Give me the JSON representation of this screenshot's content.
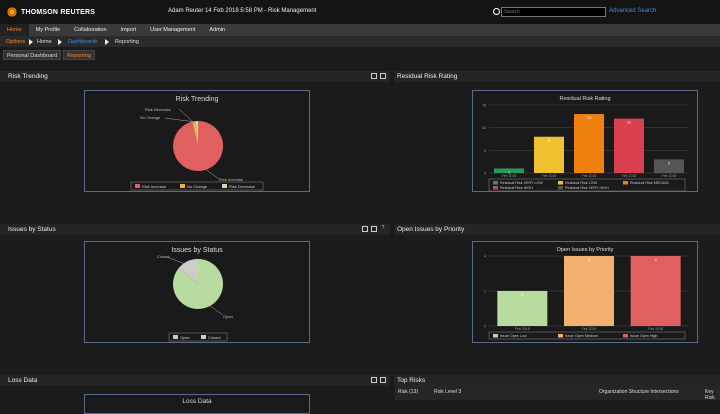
{
  "header": {
    "logo_text": "THOMSON REUTERS",
    "user_title": "Adam Reuter 14 Feb 2018 5:58 PM - Risk Management",
    "search_placeholder": "Search",
    "advanced_search": "Advanced Search"
  },
  "nav": [
    "Home",
    "My Profile",
    "Collaboration",
    "Import",
    "User Management",
    "Admin"
  ],
  "breadcrumb": [
    "Options",
    "Home",
    "Dashboards",
    "Reporting"
  ],
  "tabs": [
    "Personal Dashboard",
    "Reporting"
  ],
  "panels": {
    "risk_trending": "Risk Trending",
    "residual": "Residual Risk Rating",
    "issues_status": "Issues by Status",
    "open_issues": "Open Issues by Priority",
    "loss_data": "Loss Data",
    "top_risks": "Top Risks"
  },
  "colors": {
    "accent": "#f28c1e",
    "link": "#4a8ad4"
  },
  "charts": {
    "risk_trending": {
      "title": "Risk Trending",
      "labels": [
        "Risk Decrease",
        "No Change",
        "Risk Increase"
      ],
      "legend": [
        "Risk Increase",
        "No Change",
        "Risk Decrease"
      ]
    },
    "issues_status": {
      "title": "Issues by Status",
      "labels": [
        "Closed",
        "Open"
      ],
      "legend": [
        "Open",
        "Closed"
      ]
    },
    "loss_title": "Loss Data"
  },
  "chart_data": [
    {
      "type": "pie",
      "title": "Risk Trending",
      "slices": [
        {
          "label": "Risk Increase",
          "value": 96,
          "color": "#e06060"
        },
        {
          "label": "No Change",
          "value": 2,
          "color": "#f0b040"
        },
        {
          "label": "Risk Decrease",
          "value": 2,
          "color": "#c8e0a8"
        }
      ]
    },
    {
      "type": "bar",
      "title": "Residual Risk Rating",
      "categories": [
        "Feb 2018",
        "Feb 2018",
        "Feb 2018",
        "Feb 2018",
        "Feb 2018"
      ],
      "values": [
        1,
        8,
        13,
        12,
        3
      ],
      "ylim": [
        0,
        15
      ],
      "yticks": [
        "15",
        "10",
        "5",
        "0"
      ],
      "series_colors": [
        "#2a9a5a",
        "#f0c030",
        "#f08010",
        "#d84050",
        "#555555"
      ],
      "legend": [
        "Residual Risk VERY LOW",
        "Residual Risk LOW",
        "Residual Risk MEDIUM",
        "Residual Risk HIGH",
        "Residual Risk VERY HIGH"
      ]
    },
    {
      "type": "pie",
      "title": "Issues by Status",
      "slices": [
        {
          "label": "Open",
          "value": 90,
          "color": "#b8dca0"
        },
        {
          "label": "Closed",
          "value": 10,
          "color": "#cccccc"
        }
      ]
    },
    {
      "type": "bar",
      "title": "Open Issues by Priority",
      "categories": [
        "Feb 2018",
        "Feb 2018",
        "Feb 2018"
      ],
      "values": [
        2,
        4,
        4
      ],
      "ylim": [
        0,
        4
      ],
      "yticks": [
        "4",
        "2",
        "0"
      ],
      "series_colors": [
        "#b8dca0",
        "#f4b070",
        "#e06060"
      ],
      "legend": [
        "Issue Open Low",
        "Issue Open Medium",
        "Issue Open High"
      ]
    }
  ],
  "top_risks_columns": [
    "Risk (13)",
    "Risk Level 3",
    "Organization Structure Intersections",
    "Key Risk"
  ]
}
